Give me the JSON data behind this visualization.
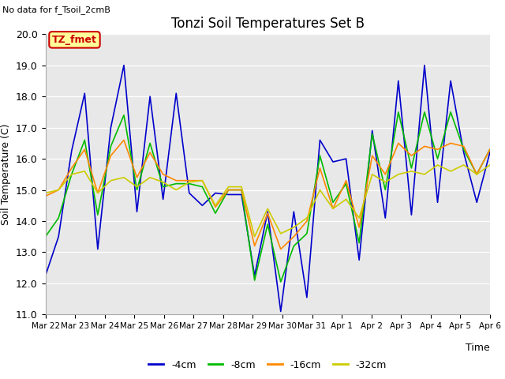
{
  "title": "Tonzi Soil Temperatures Set B",
  "ylabel": "Soil Temperature (C)",
  "xlabel": "Time",
  "top_left_text": "No data for f_Tsoil_2cmB",
  "legend_box_text": "TZ_fmet",
  "legend_box_color": "#ffff99",
  "legend_box_border_color": "#cc0000",
  "legend_box_text_color": "#cc0000",
  "ylim": [
    11.0,
    20.0
  ],
  "yticks": [
    11.0,
    12.0,
    13.0,
    14.0,
    15.0,
    16.0,
    17.0,
    18.0,
    19.0,
    20.0
  ],
  "xtick_labels": [
    "Mar 22",
    "Mar 23",
    "Mar 24",
    "Mar 25",
    "Mar 26",
    "Mar 27",
    "Mar 28",
    "Mar 29",
    "Mar 30",
    "Mar 31",
    "Apr 1",
    "Apr 2",
    "Apr 3",
    "Apr 4",
    "Apr 5",
    "Apr 6"
  ],
  "colors": {
    "4cm": "#0000cc",
    "8cm": "#00bb00",
    "16cm": "#ff8800",
    "32cm": "#cccc00"
  },
  "bg_color": "#e8e8e8",
  "legend_labels": [
    "-4cm",
    "-8cm",
    "-16cm",
    "-32cm"
  ],
  "x_4cm": [
    0,
    1,
    2,
    3,
    4,
    5,
    6,
    7,
    8,
    9,
    10,
    11,
    12,
    13,
    14,
    15,
    16,
    17,
    18,
    19,
    20,
    21,
    22,
    23,
    24,
    25,
    26,
    27,
    28,
    29,
    30,
    31,
    32,
    33,
    34
  ],
  "y_4cm": [
    12.25,
    13.5,
    16.25,
    18.1,
    13.1,
    17.0,
    19.0,
    14.3,
    18.0,
    14.7,
    18.1,
    14.9,
    14.5,
    14.9,
    14.85,
    14.85,
    12.25,
    14.3,
    11.1,
    14.3,
    11.55,
    16.6,
    15.9,
    16.0,
    12.75,
    16.9,
    14.1,
    18.5,
    14.2,
    19.0,
    14.6,
    18.5,
    16.2,
    14.6,
    16.2
  ],
  "x_8cm": [
    0,
    1,
    2,
    3,
    4,
    5,
    6,
    7,
    8,
    9,
    10,
    11,
    12,
    13,
    14,
    15,
    16,
    17,
    18,
    19,
    20,
    21,
    22,
    23,
    24,
    25,
    26,
    27,
    28,
    29,
    30,
    31,
    32,
    33,
    34
  ],
  "y_8cm": [
    13.5,
    14.1,
    15.5,
    16.6,
    14.2,
    16.4,
    17.4,
    15.0,
    16.5,
    15.1,
    15.2,
    15.2,
    15.1,
    14.25,
    15.0,
    15.0,
    12.1,
    13.9,
    12.05,
    13.2,
    13.6,
    16.1,
    14.6,
    15.2,
    13.3,
    16.8,
    15.0,
    17.5,
    15.7,
    17.5,
    16.0,
    17.5,
    16.3,
    15.5,
    16.3
  ],
  "x_16cm": [
    0,
    1,
    2,
    3,
    4,
    5,
    6,
    7,
    8,
    9,
    10,
    11,
    12,
    13,
    14,
    15,
    16,
    17,
    18,
    19,
    20,
    21,
    22,
    23,
    24,
    25,
    26,
    27,
    28,
    29,
    30,
    31,
    32,
    33,
    34
  ],
  "y_16cm": [
    14.8,
    15.0,
    15.7,
    16.3,
    14.9,
    16.1,
    16.6,
    15.4,
    16.2,
    15.5,
    15.3,
    15.3,
    15.3,
    14.45,
    15.0,
    15.0,
    13.2,
    14.25,
    13.1,
    13.5,
    14.0,
    15.7,
    14.4,
    15.3,
    13.8,
    16.1,
    15.5,
    16.5,
    16.1,
    16.4,
    16.3,
    16.5,
    16.4,
    15.5,
    16.3
  ],
  "x_32cm": [
    0,
    1,
    2,
    3,
    4,
    5,
    6,
    7,
    8,
    9,
    10,
    11,
    12,
    13,
    14,
    15,
    16,
    17,
    18,
    19,
    20,
    21,
    22,
    23,
    24,
    25,
    26,
    27,
    28,
    29,
    30,
    31,
    32,
    33,
    34
  ],
  "y_32cm": [
    14.9,
    15.0,
    15.5,
    15.6,
    14.9,
    15.3,
    15.4,
    15.1,
    15.4,
    15.25,
    15.0,
    15.25,
    15.3,
    14.5,
    15.1,
    15.1,
    13.5,
    14.4,
    13.6,
    13.8,
    14.1,
    15.0,
    14.4,
    14.7,
    14.1,
    15.5,
    15.25,
    15.5,
    15.6,
    15.5,
    15.8,
    15.6,
    15.8,
    15.5,
    15.8
  ]
}
